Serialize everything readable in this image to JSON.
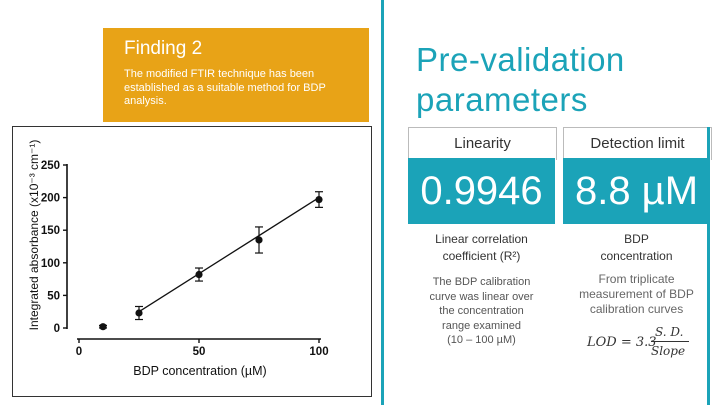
{
  "finding": {
    "title": "Finding 2",
    "body": "The modified FTIR technique has been established as a suitable method for BDP analysis."
  },
  "validation": {
    "title_line1": "Pre-validation",
    "title_line2": "parameters",
    "linearity": {
      "header": "Linearity",
      "value": "0.9946",
      "label_line1": "Linear correlation",
      "label_line2": "coefficient (R²)",
      "desc": [
        "The BDP calibration",
        "curve was linear over",
        "the concentration",
        "range examined",
        "(10 – 100 µM)"
      ]
    },
    "detection": {
      "header": "Detection limit",
      "value": "8.8 µM",
      "label_line1": "BDP",
      "label_line2": "concentration",
      "desc": [
        "From triplicate",
        "measurement of BDP",
        "calibration curves"
      ],
      "formula_lhs": "LOD = 3.3",
      "formula_num": "S. D.",
      "formula_den": "Slope"
    }
  },
  "colors": {
    "accent": "#1BA3B8",
    "orange": "#E8A317"
  },
  "chart_data": {
    "type": "scatter",
    "xlabel": "BDP concentration (µM)",
    "ylabel": "Integrated absorbance (x10⁻³ cm⁻¹)",
    "xlim": [
      0,
      100
    ],
    "ylim": [
      0,
      250
    ],
    "xticks": [
      "0",
      "50",
      "100"
    ],
    "yticks": [
      "0",
      "50",
      "100",
      "150",
      "200",
      "250"
    ],
    "x": [
      10,
      25,
      50,
      75,
      100
    ],
    "y": [
      2,
      23,
      82,
      135,
      197
    ],
    "error": [
      2,
      10,
      10,
      20,
      12
    ],
    "fit_line": {
      "x": [
        25,
        100
      ],
      "y": [
        25,
        200
      ]
    }
  }
}
